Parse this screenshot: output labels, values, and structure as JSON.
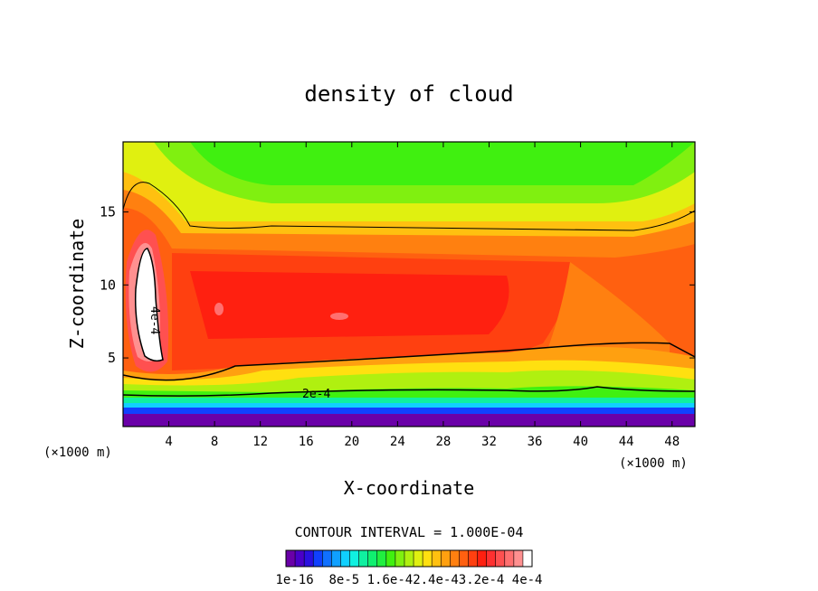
{
  "chart_data": {
    "type": "heatmap",
    "title": "density of cloud",
    "xlabel": "X-coordinate",
    "ylabel": "Z-coordinate",
    "x_unit": "(×1000 m)",
    "z_unit": "(×1000 m)",
    "xlim": [
      0,
      50
    ],
    "ylim": [
      0.3,
      19.8
    ],
    "x_ticks": [
      4,
      8,
      12,
      16,
      20,
      24,
      28,
      32,
      36,
      40,
      44,
      48
    ],
    "y_ticks": [
      5,
      10,
      15
    ],
    "contour_interval": "CONTOUR INTERVAL = 1.000E-04",
    "contour_labels": [
      "2e-4",
      "4e-4"
    ],
    "colorbar_labels": [
      "1e-16",
      "8e-5",
      "1.6e-4",
      "2.4e-4",
      "3.2e-4",
      "4e-4"
    ],
    "colorbar_printed": "1e-16  8e-5 1.6e-42.4e-43.2e-4 4e-4",
    "colorbar_range": [
      1e-16,
      0.00044
    ],
    "colors": [
      "#6a00a8",
      "#4a00c8",
      "#2a10e0",
      "#1040ff",
      "#1070ff",
      "#10a0ff",
      "#10d0ff",
      "#10f0e0",
      "#10f0a0",
      "#10f070",
      "#20f040",
      "#40f010",
      "#80f010",
      "#b0f010",
      "#e0f010",
      "#ffe010",
      "#ffc010",
      "#ffa010",
      "#ff8010",
      "#ff6010",
      "#ff4010",
      "#ff2010",
      "#ff3030",
      "#ff5050",
      "#ff7070",
      "#ff9090",
      "#ffffff"
    ],
    "regions": [
      {
        "range": "below 1e-16",
        "z_range": [
          0.3,
          1.0
        ],
        "color": "#6a00a8"
      },
      {
        "range": "blue-cyan",
        "z_range": [
          1.0,
          2.0
        ]
      },
      {
        "range": "green-yellow",
        "z_range": [
          2.0,
          3.0
        ]
      },
      {
        "range": "about 3e-4 (red core)",
        "x_range": [
          5,
          35
        ],
        "z_range": [
          5,
          13
        ]
      },
      {
        "range": "above 4e-4 (white)",
        "x_range": [
          1,
          3
        ],
        "z_range": [
          4.5,
          12.5
        ]
      },
      {
        "range": "below 1e-4 (green top)",
        "x_range": [
          10,
          46
        ],
        "z_range": [
          17,
          19.8
        ]
      }
    ]
  }
}
